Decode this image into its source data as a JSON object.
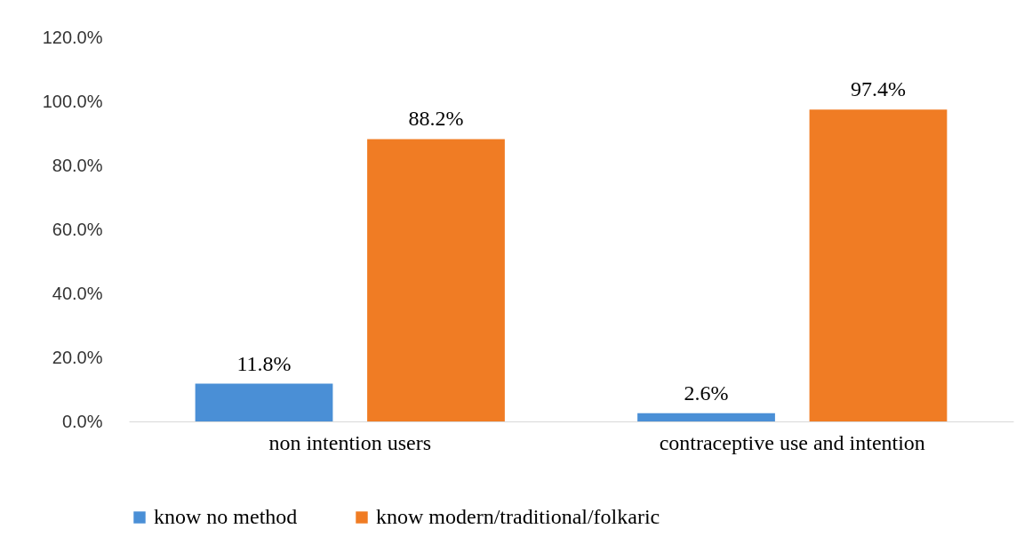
{
  "chart_data": {
    "type": "bar",
    "categories": [
      "non intention users",
      "contraceptive use and intention"
    ],
    "series": [
      {
        "name": "know no method",
        "color": "#4a8fd6",
        "values": [
          11.8,
          2.6
        ],
        "value_labels": [
          "11.8%",
          "2.6%"
        ]
      },
      {
        "name": "know modern/traditional/folkaric",
        "color": "#f07c24",
        "values": [
          88.2,
          97.4
        ],
        "value_labels": [
          "88.2%",
          "97.4%"
        ]
      }
    ],
    "ylim": [
      0,
      120
    ],
    "yticks": [
      {
        "value": 0,
        "label": "0.0%"
      },
      {
        "value": 20,
        "label": "20.0%"
      },
      {
        "value": 40,
        "label": "40.0%"
      },
      {
        "value": 60,
        "label": "60.0%"
      },
      {
        "value": 80,
        "label": "80.0%"
      },
      {
        "value": 100,
        "label": "100.0%"
      },
      {
        "value": 120,
        "label": "120.0%"
      }
    ],
    "legend": "bottom",
    "grid": false
  }
}
